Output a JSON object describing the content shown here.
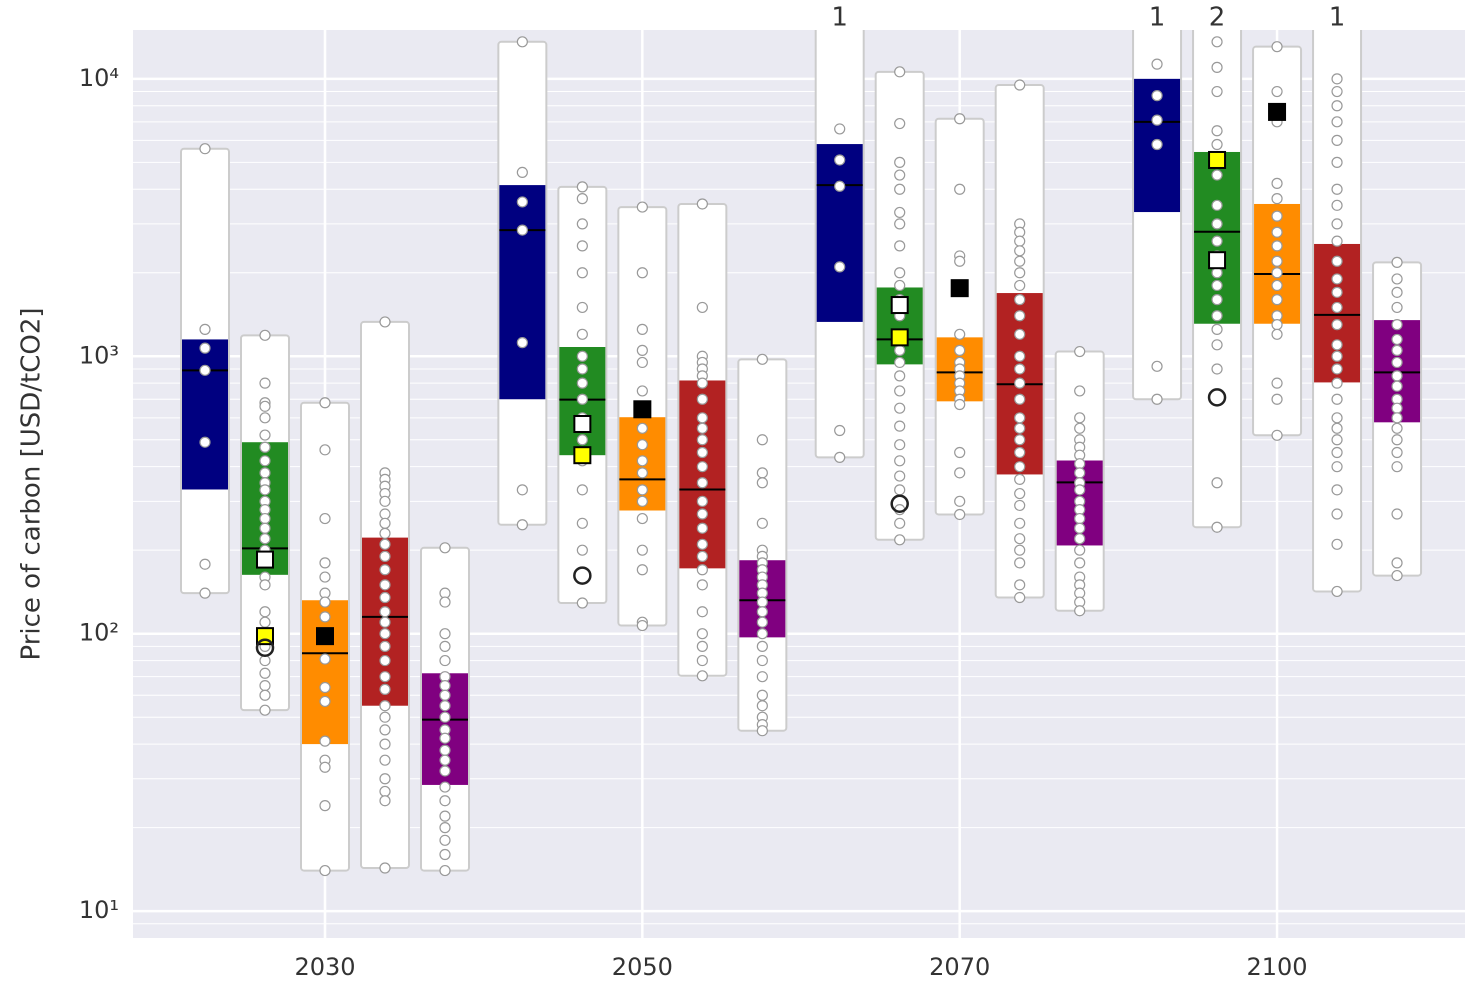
{
  "chart_data": {
    "type": "box",
    "y_label": "Price of carbon [USD/tCO2]",
    "categories": [
      "2030",
      "2050",
      "2070",
      "2100"
    ],
    "log_scale": true,
    "grid": true,
    "minor_grid": true,
    "ylim": [
      8,
      15000
    ],
    "yticks": [
      {
        "value": 10,
        "label": "10¹"
      },
      {
        "value": 100,
        "label": "10²"
      },
      {
        "value": 1000,
        "label": "10³"
      },
      {
        "value": 10000,
        "label": "10⁴"
      }
    ],
    "series": [
      {
        "color": "#000080",
        "min": [
          140,
          247,
          432,
          700
        ],
        "q1": [
          331,
          700,
          1330,
          3310
        ],
        "median": [
          890,
          2850,
          4140,
          7000
        ],
        "q3": [
          1150,
          4140,
          5820,
          10000
        ],
        "max": [
          5600,
          13600,
          22000,
          25000
        ],
        "above": [
          null,
          null,
          1,
          1
        ],
        "points": [
          [
            5600,
            1250,
            1070,
            890,
            490,
            178,
            140
          ],
          [
            13600,
            4600,
            3600,
            2850,
            1120,
            330,
            247
          ],
          [
            6600,
            5100,
            4100,
            2100,
            540,
            432
          ],
          [
            11300,
            8700,
            7100,
            5800,
            920,
            700
          ]
        ],
        "markers": []
      },
      {
        "color": "#228b22",
        "min": [
          53,
          129,
          218,
          242
        ],
        "q1": [
          163,
          440,
          935,
          1310
        ],
        "median": [
          203,
          698,
          1150,
          2810
        ],
        "q3": [
          490,
          1080,
          1770,
          5450
        ],
        "max": [
          1190,
          4080,
          10600,
          30000
        ],
        "above": [
          null,
          null,
          null,
          2
        ],
        "points": [
          [
            1190,
            800,
            680,
            660,
            600,
            520,
            470,
            420,
            380,
            350,
            330,
            300,
            280,
            260,
            240,
            220,
            200,
            185,
            160,
            150,
            120,
            110,
            100,
            90,
            80,
            72,
            65,
            60,
            53
          ],
          [
            4080,
            3700,
            3000,
            2500,
            2000,
            1500,
            1200,
            1000,
            900,
            800,
            700,
            600,
            500,
            420,
            330,
            250,
            200,
            129
          ],
          [
            10600,
            6900,
            5000,
            4500,
            4000,
            3300,
            3000,
            2500,
            2000,
            1800,
            1600,
            1400,
            1200,
            1050,
            950,
            850,
            750,
            650,
            560,
            480,
            420,
            370,
            330,
            280,
            250,
            218
          ],
          [
            13600,
            11000,
            9000,
            6500,
            5800,
            5000,
            4500,
            3500,
            3000,
            2600,
            2300,
            2000,
            1800,
            1600,
            1400,
            1250,
            1100,
            900,
            350,
            242
          ]
        ],
        "markers": [
          {
            "shape": "square",
            "fill": "#ffffff",
            "values": [
              185,
              570,
              1530,
              2220
            ]
          },
          {
            "shape": "square",
            "fill": "#ffff00",
            "values": [
              98,
              440,
              1170,
              5100
            ]
          },
          {
            "shape": "circle",
            "fill": "none",
            "values": [
              89,
              162,
              294,
              711
            ]
          }
        ]
      },
      {
        "color": "#ff8c00",
        "min": [
          14,
          107,
          269,
          519
        ],
        "q1": [
          40,
          278,
          688,
          1310
        ],
        "median": [
          85,
          360,
          875,
          1980
        ],
        "q3": [
          132,
          603,
          1170,
          3540
        ],
        "max": [
          680,
          3450,
          7180,
          13060
        ],
        "above": [
          null,
          null,
          null,
          null
        ],
        "points": [
          [
            680,
            460,
            260,
            180,
            160,
            140,
            130,
            115,
            97,
            81,
            64,
            57,
            41,
            35,
            33,
            24,
            14
          ],
          [
            3450,
            2000,
            1250,
            1050,
            950,
            750,
            650,
            550,
            480,
            420,
            380,
            330,
            300,
            260,
            200,
            170,
            110,
            107
          ],
          [
            7180,
            4000,
            2300,
            2200,
            1200,
            1050,
            950,
            900,
            850,
            800,
            750,
            700,
            670,
            450,
            380,
            300,
            269
          ],
          [
            13060,
            9000,
            7000,
            4200,
            3700,
            3200,
            2800,
            2500,
            2200,
            2000,
            1800,
            1600,
            1400,
            1300,
            1200,
            800,
            700,
            519
          ]
        ],
        "markers": [
          {
            "shape": "square",
            "fill": "#000000",
            "values": [
              98,
              644,
              1760,
              7600
            ]
          }
        ]
      },
      {
        "color": "#b22222",
        "min": [
          14.3,
          70.5,
          135,
          142
        ],
        "q1": [
          55,
          172,
          375,
          805
        ],
        "median": [
          115,
          331,
          793,
          1410
        ],
        "q3": [
          222,
          818,
          1690,
          2540
        ],
        "max": [
          1330,
          3540,
          9500,
          20000
        ],
        "above": [
          null,
          null,
          null,
          1
        ],
        "points": [
          [
            1330,
            380,
            360,
            340,
            320,
            300,
            270,
            250,
            230,
            210,
            190,
            170,
            150,
            135,
            120,
            110,
            100,
            90,
            80,
            70,
            63,
            55,
            50,
            45,
            40,
            35,
            30,
            27,
            25,
            14.3
          ],
          [
            3540,
            1500,
            1000,
            950,
            900,
            850,
            800,
            700,
            600,
            550,
            500,
            450,
            400,
            350,
            300,
            270,
            240,
            210,
            190,
            170,
            150,
            120,
            100,
            90,
            80,
            70.5
          ],
          [
            9500,
            3000,
            2800,
            2600,
            2400,
            2200,
            2000,
            1800,
            1600,
            1400,
            1200,
            1000,
            900,
            800,
            700,
            600,
            550,
            500,
            450,
            400,
            360,
            320,
            290,
            250,
            220,
            200,
            180,
            150,
            135
          ],
          [
            10000,
            9000,
            8000,
            7000,
            6000,
            5000,
            4000,
            3500,
            3000,
            2600,
            2200,
            1900,
            1700,
            1500,
            1300,
            1100,
            1000,
            900,
            800,
            700,
            600,
            550,
            500,
            450,
            400,
            330,
            270,
            210,
            142
          ]
        ],
        "markers": []
      },
      {
        "color": "#800080",
        "min": [
          14,
          44.7,
          121,
          162
        ],
        "q1": [
          28.5,
          97,
          208,
          578
        ],
        "median": [
          49,
          132,
          351,
          875
        ],
        "q3": [
          72,
          184,
          421,
          1350
        ],
        "max": [
          204,
          975,
          1040,
          2180
        ],
        "above": [
          null,
          null,
          null,
          null
        ],
        "points": [
          [
            204,
            140,
            130,
            100,
            90,
            80,
            70,
            65,
            60,
            55,
            50,
            45,
            42,
            38,
            35,
            32,
            28,
            25,
            22,
            20,
            18,
            16,
            14
          ],
          [
            975,
            500,
            380,
            350,
            250,
            200,
            190,
            180,
            170,
            160,
            150,
            140,
            130,
            120,
            110,
            100,
            90,
            80,
            70,
            60,
            55,
            50,
            47,
            44.7
          ],
          [
            1040,
            750,
            600,
            550,
            500,
            470,
            440,
            410,
            380,
            350,
            330,
            300,
            280,
            260,
            240,
            220,
            200,
            180,
            160,
            150,
            140,
            130,
            121
          ],
          [
            2180,
            1900,
            1700,
            1500,
            1300,
            1150,
            1050,
            950,
            850,
            780,
            700,
            650,
            600,
            550,
            500,
            450,
            400,
            270,
            180,
            162
          ]
        ],
        "markers": []
      }
    ]
  }
}
